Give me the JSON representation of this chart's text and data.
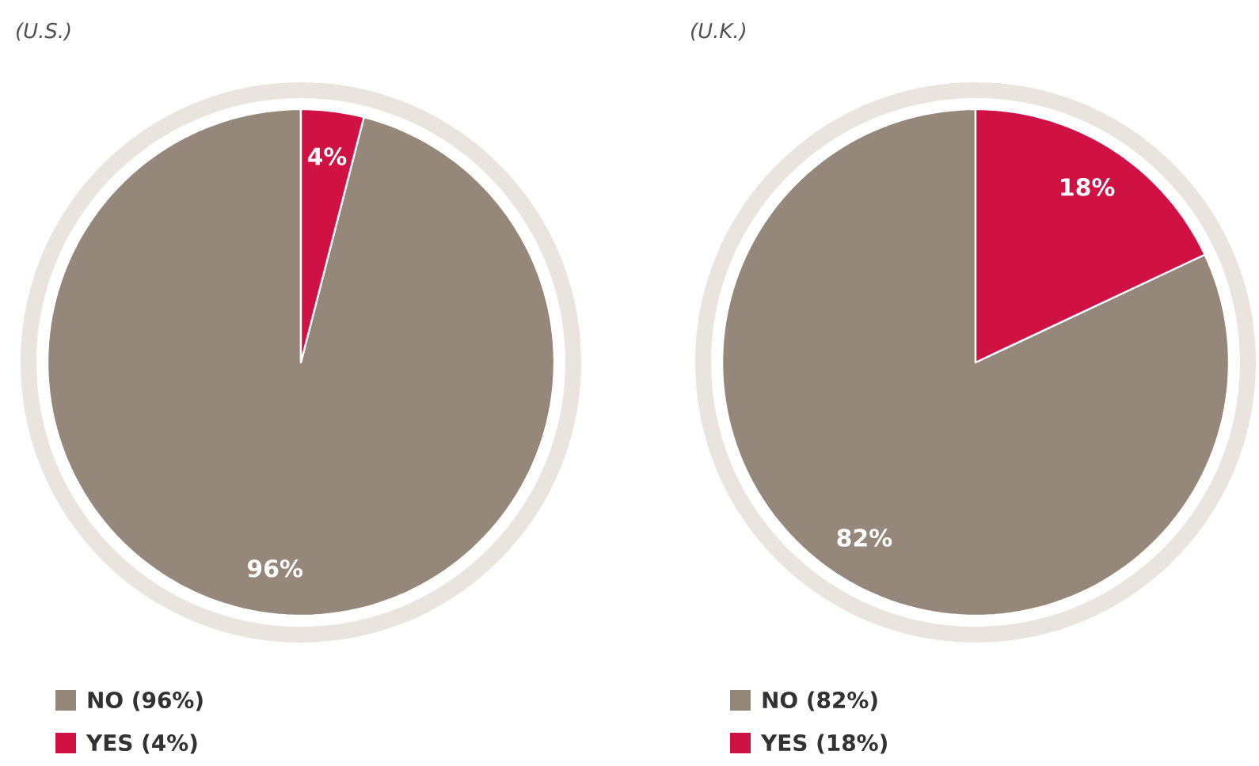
{
  "chart_data": [
    {
      "type": "pie",
      "title": "(U.S.)",
      "categories": [
        "NO (96%)",
        "YES (4%)"
      ],
      "values": [
        96,
        4
      ],
      "colors": [
        "#958779",
        "#d01144"
      ],
      "value_labels": [
        "96%",
        "4%"
      ],
      "legend": "bottom"
    },
    {
      "type": "pie",
      "title": "(U.K.)",
      "categories": [
        "NO (82%)",
        "YES (18%)"
      ],
      "values": [
        82,
        18
      ],
      "colors": [
        "#958779",
        "#d01144"
      ],
      "value_labels": [
        "82%",
        "18%"
      ],
      "legend": "bottom"
    }
  ]
}
